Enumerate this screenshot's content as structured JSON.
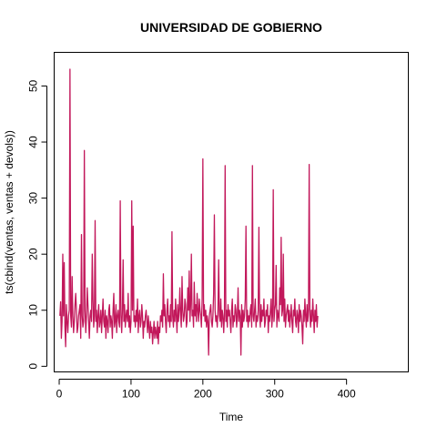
{
  "chart_data": {
    "type": "line",
    "title": "UNIVERSIDAD DE GOBIERNO",
    "xlabel": "Time",
    "ylabel": "ts(cbind(ventas, ventas + devols))",
    "xlim": [
      -7,
      486
    ],
    "ylim": [
      -1,
      56
    ],
    "xticks": [
      0,
      100,
      200,
      300,
      400
    ],
    "yticks": [
      0,
      10,
      20,
      30,
      40,
      50
    ],
    "grid": false,
    "legend": "none",
    "colors": {
      "series": "#c2185b",
      "axis": "#000000",
      "background": "#ffffff"
    },
    "series": [
      {
        "values": [
          9,
          11.5,
          5,
          8,
          20,
          9,
          18.5,
          7,
          3.5,
          11,
          8,
          6,
          9,
          10,
          53,
          9,
          7,
          16,
          9,
          6,
          8,
          11,
          13,
          10,
          6,
          7,
          9,
          10,
          11,
          5,
          23.5,
          9,
          7,
          8,
          38.5,
          10,
          6,
          9,
          14,
          11,
          8,
          5,
          9,
          10,
          8,
          20,
          12,
          7,
          9,
          26,
          8,
          10,
          6,
          9,
          11,
          7,
          8,
          10,
          6,
          9,
          12,
          8,
          7,
          10,
          5,
          9,
          8,
          6,
          10,
          11,
          7,
          9,
          8,
          5,
          10,
          13,
          7,
          8,
          11,
          6,
          9,
          10,
          8,
          7,
          29.5,
          9,
          6,
          10,
          19,
          8,
          11,
          7,
          9,
          10,
          8,
          13,
          7,
          9,
          6,
          8,
          29.5,
          10,
          25,
          8,
          9,
          7,
          10,
          8,
          12,
          6,
          9,
          10,
          7,
          8,
          11,
          9,
          5,
          8,
          7,
          9,
          10,
          8,
          6,
          9,
          7,
          5,
          8,
          6,
          7,
          4,
          6,
          8,
          5,
          7,
          6,
          5,
          8,
          4,
          7,
          6,
          9,
          8,
          10,
          7,
          16.5,
          9,
          11,
          8,
          6,
          10,
          12,
          8,
          9,
          7,
          11,
          8,
          24,
          9,
          7,
          10,
          8,
          12,
          9,
          6,
          11,
          8,
          10,
          14,
          9,
          7,
          16,
          10,
          8,
          9,
          12,
          11,
          7,
          8,
          14,
          10,
          17,
          8,
          11,
          20,
          9,
          10,
          7,
          15,
          9,
          11,
          8,
          13,
          10,
          8,
          12,
          10,
          9,
          7,
          12,
          37,
          9,
          11,
          8,
          10,
          7,
          9,
          8,
          2,
          9,
          10,
          11,
          8,
          7,
          9,
          13,
          27,
          10,
          8,
          9,
          7,
          10,
          19,
          9,
          8,
          12,
          7,
          10,
          9,
          6,
          9,
          35.8,
          8,
          10,
          7,
          11,
          9,
          10,
          8,
          6,
          10,
          12,
          7,
          9,
          8,
          11,
          10,
          7,
          9,
          14,
          8,
          10,
          9,
          2,
          11,
          7,
          10,
          8,
          9,
          12,
          25,
          8,
          10,
          7,
          9,
          8,
          10,
          11,
          7,
          35.8,
          9,
          8,
          10,
          12,
          7,
          9,
          8,
          10,
          24.8,
          9,
          7,
          11,
          8,
          10,
          9,
          12,
          7,
          8,
          10,
          9,
          11,
          6,
          9,
          8,
          10,
          12,
          7,
          9,
          31.5,
          8,
          10,
          11,
          18,
          7,
          10,
          9,
          8,
          14,
          11,
          23,
          9,
          10,
          20,
          8,
          12,
          7,
          9,
          10,
          11,
          8,
          10,
          7,
          9,
          11,
          8,
          6,
          10,
          9,
          12,
          8,
          7,
          10,
          9,
          6,
          11,
          8,
          10,
          9,
          7,
          4,
          10,
          8,
          12,
          9,
          7,
          11,
          8,
          10,
          36,
          9,
          7,
          10,
          8,
          12,
          9,
          6,
          10,
          8,
          11,
          7,
          9
        ]
      }
    ]
  }
}
